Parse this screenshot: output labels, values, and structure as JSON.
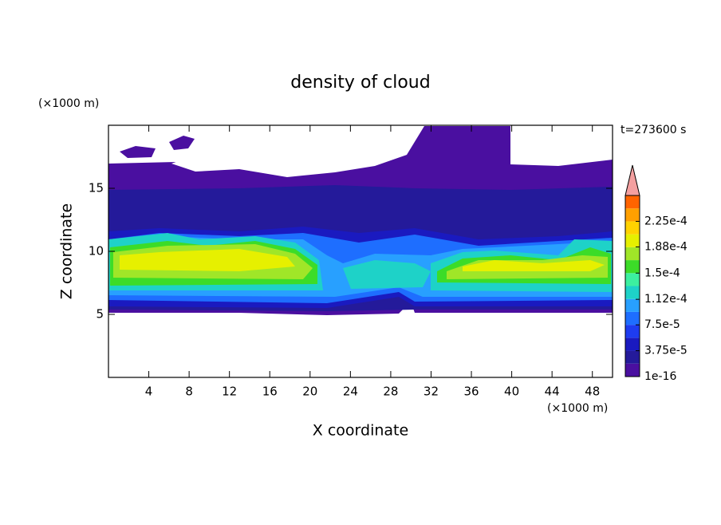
{
  "chart_data": {
    "type": "contour",
    "title": "density of cloud",
    "xlabel": "X coordinate",
    "ylabel": "Z coordinate",
    "x_unit": "(×1000 m)",
    "y_unit": "(×1000 m)",
    "time_label": "t=273600 s",
    "xlim": [
      0,
      50
    ],
    "ylim": [
      0,
      20
    ],
    "xticks": [
      4,
      8,
      12,
      16,
      20,
      24,
      28,
      32,
      36,
      40,
      44,
      48
    ],
    "yticks": [
      5,
      10,
      15
    ],
    "colorbar": {
      "clim": [
        0,
        0.0002625
      ],
      "colors": [
        "#4a0fa0",
        "#241a9a",
        "#1a1ac0",
        "#1e3cf0",
        "#1e6eff",
        "#28a0ff",
        "#1ed2c8",
        "#3cf0a0",
        "#3cdc28",
        "#a0e628",
        "#e6f000",
        "#ffd200",
        "#ffa000",
        "#ff6400"
      ],
      "over_color": "#f4a0a0",
      "ticks": [
        {
          "value": 1e-16,
          "label": "1e-16"
        },
        {
          "value": 3.75e-05,
          "label": "3.75e-5"
        },
        {
          "value": 7.5e-05,
          "label": "7.5e-5"
        },
        {
          "value": 0.000112,
          "label": "1.12e-4"
        },
        {
          "value": 0.00015,
          "label": "1.5e-4"
        },
        {
          "value": 0.000188,
          "label": "1.88e-4"
        },
        {
          "value": 0.000225,
          "label": "2.25e-4"
        }
      ]
    }
  }
}
